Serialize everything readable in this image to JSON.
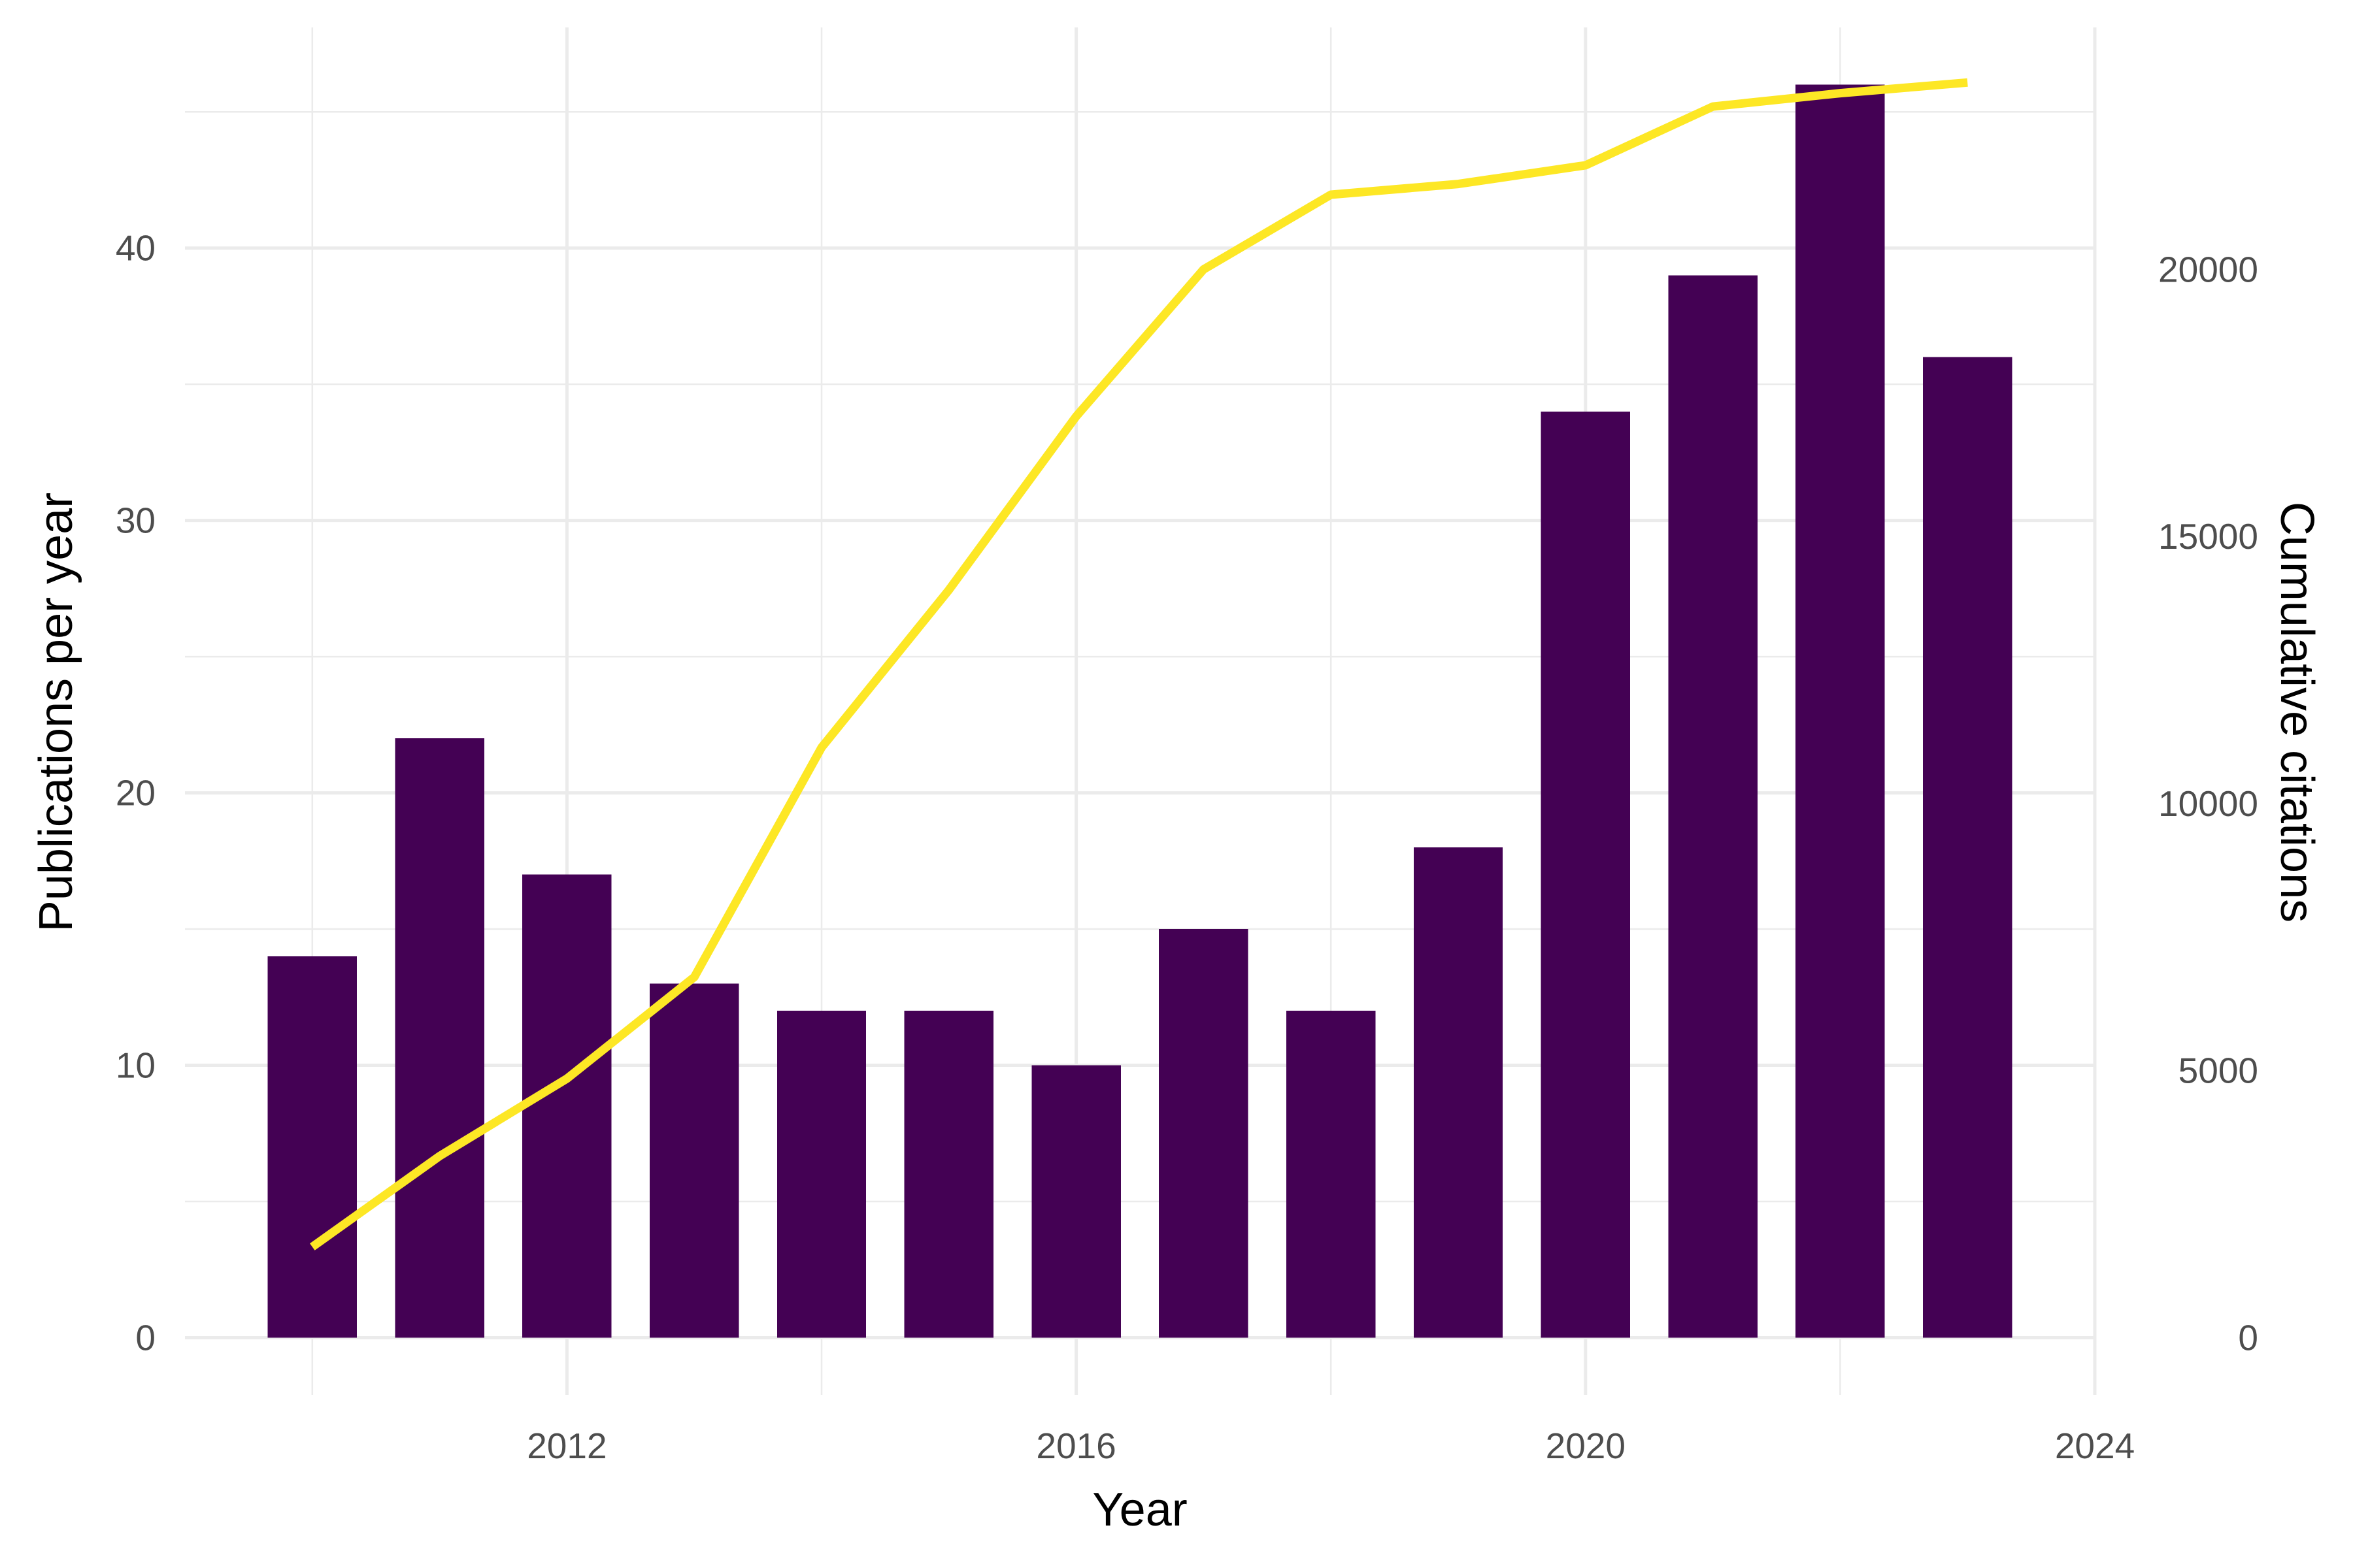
{
  "chart_data": {
    "type": "bar",
    "title": "",
    "xlabel": "Year",
    "ylabel": "Publications per year",
    "y2label": "Cumulative citations",
    "x": [
      2010,
      2011,
      2012,
      2013,
      2014,
      2015,
      2016,
      2017,
      2018,
      2019,
      2020,
      2021,
      2022,
      2023
    ],
    "x_ticks": [
      "2012",
      "2016",
      "2020",
      "2024"
    ],
    "xlim": [
      2009.0,
      2024.0
    ],
    "ylim": [
      -2.1,
      48.1
    ],
    "y_ticks": [
      "0",
      "10",
      "20",
      "30",
      "40"
    ],
    "y2_ticks": [
      "0",
      "5000",
      "10000",
      "15000",
      "20000"
    ],
    "y2_scale_per_unit": 510,
    "grid": true,
    "legend": "none",
    "series": [
      {
        "type": "bar",
        "axis": "left",
        "color": "#440154",
        "values": [
          14,
          22,
          17,
          13,
          12,
          12,
          10,
          15,
          12,
          18,
          34,
          39,
          46,
          36
        ]
      },
      {
        "type": "line",
        "axis": "right",
        "color": "#fde725",
        "values": [
          1700,
          3400,
          4850,
          6750,
          11050,
          14000,
          17250,
          20000,
          21400,
          21600,
          21950,
          23050,
          23300,
          23500
        ]
      }
    ]
  }
}
